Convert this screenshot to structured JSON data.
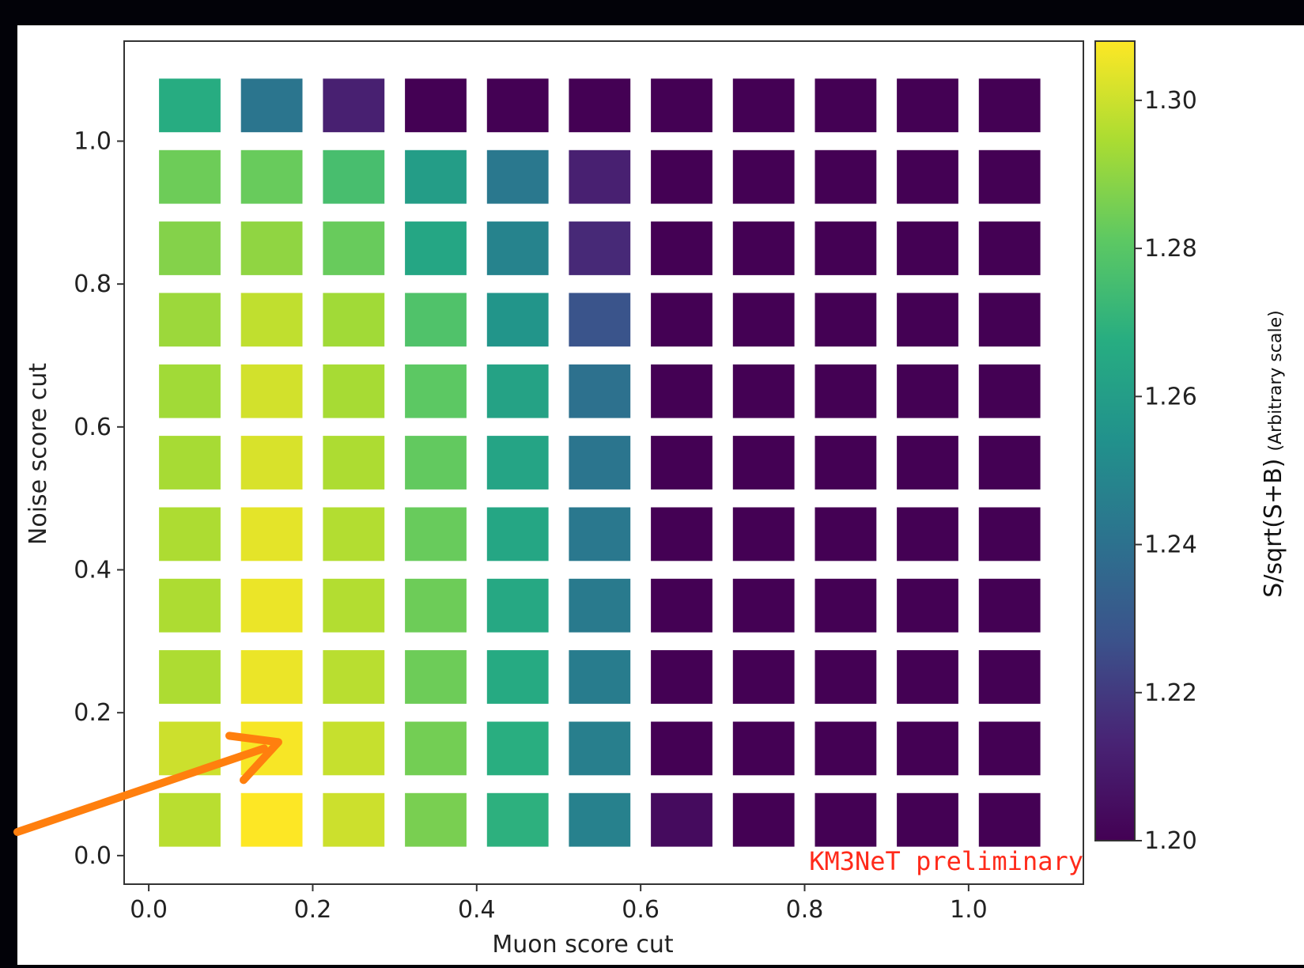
{
  "chart_data": {
    "type": "heatmap",
    "title": "",
    "xlabel": "Muon score cut",
    "ylabel": "Noise score cut",
    "xlim": [
      -0.03,
      1.14
    ],
    "ylim": [
      -0.04,
      1.14
    ],
    "x_ticks": [
      0.0,
      0.2,
      0.4,
      0.6,
      0.8,
      1.0
    ],
    "y_ticks": [
      0.0,
      0.2,
      0.4,
      0.6,
      0.8,
      1.0
    ],
    "x": [
      0.05,
      0.15,
      0.25,
      0.35,
      0.45,
      0.55,
      0.65,
      0.75,
      0.85,
      0.95,
      1.05
    ],
    "y": [
      0.05,
      0.15,
      0.25,
      0.35,
      0.45,
      0.55,
      0.65,
      0.75,
      0.85,
      0.95,
      1.05
    ],
    "cell_size": 0.075,
    "values": [
      [
        1.297,
        1.309,
        1.3,
        1.286,
        1.269,
        1.247,
        1.204,
        1.2,
        1.2,
        1.2,
        1.2
      ],
      [
        1.3,
        1.307,
        1.299,
        1.285,
        1.268,
        1.246,
        1.2,
        1.2,
        1.2,
        1.2,
        1.2
      ],
      [
        1.295,
        1.305,
        1.297,
        1.284,
        1.266,
        1.245,
        1.2,
        1.2,
        1.2,
        1.2,
        1.2
      ],
      [
        1.295,
        1.305,
        1.296,
        1.284,
        1.265,
        1.244,
        1.2,
        1.2,
        1.2,
        1.2,
        1.2
      ],
      [
        1.295,
        1.304,
        1.296,
        1.283,
        1.264,
        1.243,
        1.2,
        1.2,
        1.2,
        1.2,
        1.2
      ],
      [
        1.294,
        1.302,
        1.295,
        1.282,
        1.263,
        1.242,
        1.2,
        1.2,
        1.2,
        1.2,
        1.2
      ],
      [
        1.293,
        1.301,
        1.294,
        1.281,
        1.262,
        1.24,
        1.2,
        1.2,
        1.2,
        1.2,
        1.2
      ],
      [
        1.292,
        1.298,
        1.293,
        1.278,
        1.256,
        1.228,
        1.2,
        1.2,
        1.2,
        1.2,
        1.2
      ],
      [
        1.288,
        1.29,
        1.283,
        1.264,
        1.248,
        1.215,
        1.2,
        1.2,
        1.2,
        1.2,
        1.2
      ],
      [
        1.284,
        1.283,
        1.276,
        1.26,
        1.243,
        1.212,
        1.2,
        1.2,
        1.2,
        1.2,
        1.2
      ],
      [
        1.267,
        1.242,
        1.212,
        1.2,
        1.2,
        1.2,
        1.2,
        1.2,
        1.2,
        1.2,
        1.2
      ]
    ],
    "colorbar": {
      "label_main": "S/sqrt(S+B)",
      "label_suffix": "(Arbitrary scale)",
      "min": 1.2,
      "max": 1.308,
      "ticks": [
        1.2,
        1.22,
        1.24,
        1.26,
        1.28,
        1.3
      ],
      "tick_labels": [
        "1.20",
        "1.22",
        "1.24",
        "1.26",
        "1.28",
        "1.30"
      ],
      "colormap": "viridis"
    },
    "annotation": {
      "text": "KM3NeT preliminary",
      "color": "#ff2a1a"
    },
    "arrow": {
      "color": "#ff7f0e",
      "target_x": 0.16,
      "target_y": 0.15
    },
    "grid": false
  }
}
